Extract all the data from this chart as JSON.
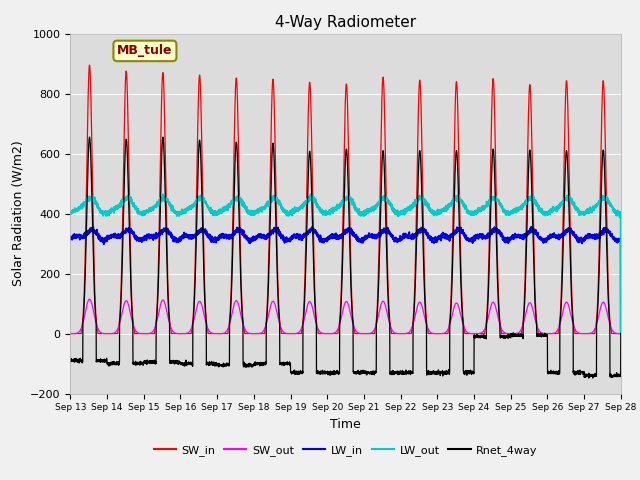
{
  "title": "4-Way Radiometer",
  "xlabel": "Time",
  "ylabel": "Solar Radiation (W/m2)",
  "ylim": [
    -200,
    1000
  ],
  "background_color": "#dcdcdc",
  "fig_background": "#f0f0f0",
  "label_box": "MB_tule",
  "series": {
    "SW_in": {
      "color": "#ff0000",
      "label": "SW_in"
    },
    "SW_out": {
      "color": "#ff00ff",
      "label": "SW_out"
    },
    "LW_in": {
      "color": "#0000ee",
      "label": "LW_in"
    },
    "LW_out": {
      "color": "#00cccc",
      "label": "LW_out"
    },
    "Rnet_4way": {
      "color": "#000000",
      "label": "Rnet_4way"
    }
  },
  "tick_labels": [
    "Sep 13",
    "Sep 14",
    "Sep 15",
    "Sep 16",
    "Sep 17",
    "Sep 18",
    "Sep 19",
    "Sep 20",
    "Sep 21",
    "Sep 22",
    "Sep 23",
    "Sep 24",
    "Sep 25",
    "Sep 26",
    "Sep 27",
    "Sep 28"
  ],
  "n_days": 15,
  "SW_in_peaks": [
    895,
    875,
    870,
    862,
    852,
    848,
    838,
    832,
    855,
    845,
    840,
    850,
    830,
    843,
    843
  ],
  "SW_out_peaks": [
    115,
    110,
    112,
    108,
    110,
    108,
    107,
    107,
    108,
    105,
    102,
    105,
    103,
    105,
    105
  ],
  "LW_in_baseline": 315,
  "LW_out_baseline": 400,
  "LW_in_day_bump": 25,
  "LW_out_day_bump": 50,
  "Rnet_peaks": [
    655,
    648,
    655,
    645,
    638,
    635,
    608,
    615,
    610,
    610,
    610,
    615,
    612,
    610,
    612
  ],
  "Rnet_night": [
    -90,
    -100,
    -95,
    -100,
    -105,
    -100,
    -130,
    -130,
    -130,
    -130,
    -130,
    -10,
    -5,
    -130,
    -140
  ],
  "pts_per_day": 288
}
